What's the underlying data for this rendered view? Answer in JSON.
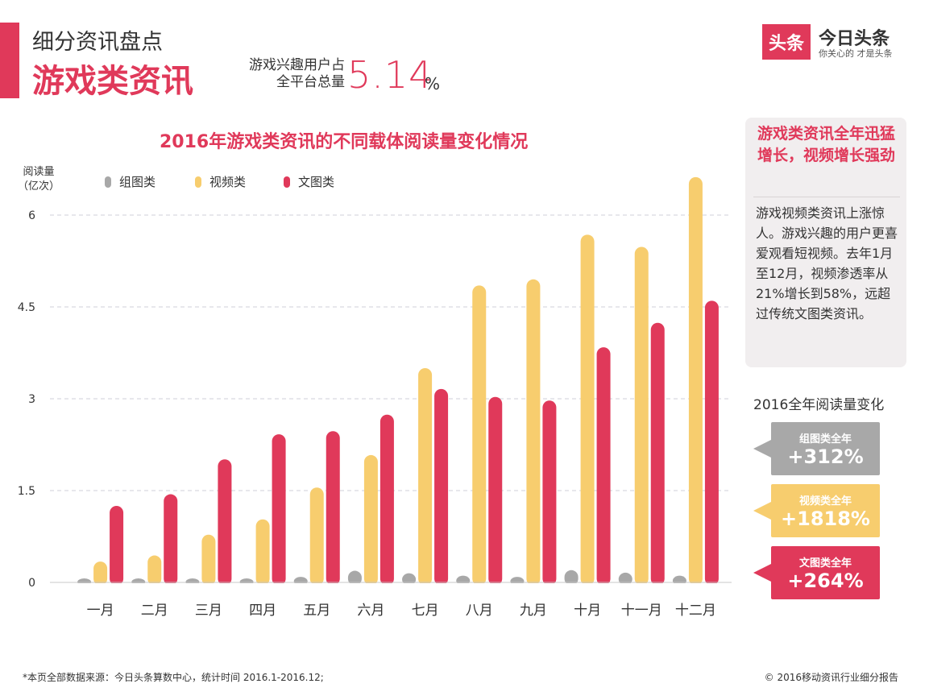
{
  "header": {
    "subtitle": "细分资讯盘点",
    "title": "游戏类资讯",
    "share_label_line1": "游戏兴趣用户占",
    "share_label_line2": "全平台总量",
    "share_value": "5.14",
    "share_unit": "%"
  },
  "logo": {
    "badge": "头条",
    "name": "今日头条",
    "slogan": "你关心的 才是头条"
  },
  "colors": {
    "accent": "#e0395a",
    "gray": "#a8a8a8",
    "yellow": "#f7cd6e",
    "red": "#e0395a"
  },
  "chart_data": {
    "type": "bar",
    "title": "2016年游戏类资讯的不同载体阅读量变化情况",
    "ylabel_line1": "阅读量",
    "ylabel_line2": "（亿次）",
    "ylim": [
      0,
      6.5
    ],
    "yticks": [
      "0",
      "1.5",
      "3",
      "4.5",
      "6"
    ],
    "ytick_values": [
      0,
      1.5,
      3,
      4.5,
      6
    ],
    "grid": true,
    "legend_position": "top-left",
    "categories": [
      "一月",
      "二月",
      "三月",
      "四月",
      "五月",
      "六月",
      "七月",
      "八月",
      "九月",
      "十月",
      "十一月",
      "十二月"
    ],
    "series": [
      {
        "name": "组图类",
        "color": "#a8a8a8",
        "values": [
          0.03,
          0.03,
          0.05,
          0.05,
          0.09,
          0.19,
          0.15,
          0.11,
          0.09,
          0.2,
          0.16,
          0.11
        ]
      },
      {
        "name": "视频类",
        "color": "#f7cd6e",
        "values": [
          0.34,
          0.44,
          0.78,
          1.03,
          1.55,
          2.08,
          3.5,
          4.85,
          4.95,
          5.68,
          5.48,
          6.62
        ]
      },
      {
        "name": "文图类",
        "color": "#e0395a",
        "values": [
          1.25,
          1.44,
          2.01,
          2.42,
          2.47,
          2.74,
          3.16,
          3.03,
          2.97,
          3.84,
          4.24,
          4.6
        ]
      }
    ]
  },
  "side_panel": {
    "heading": "游戏类资讯全年迅猛增长，视频增长强劲",
    "body": "游戏视频类资讯上涨惊人。游戏兴趣的用户更喜爱观看短视频。去年1月至12月，视频渗透率从21%增长到58%，远超过传统文图类资讯。"
  },
  "annual_change": {
    "title": "2016全年阅读量变化",
    "items": [
      {
        "label": "组图类全年",
        "value": "+312%",
        "color": "#a8a8a8"
      },
      {
        "label": "视频类全年",
        "value": "+1818%",
        "color": "#f7cd6e"
      },
      {
        "label": "文图类全年",
        "value": "+264%",
        "color": "#e0395a"
      }
    ]
  },
  "footer": {
    "source": "*本页全部数据来源：今日头条算数中心，统计时间 2016.1-2016.12;",
    "copyright": "© 2016移动资讯行业细分报告"
  }
}
